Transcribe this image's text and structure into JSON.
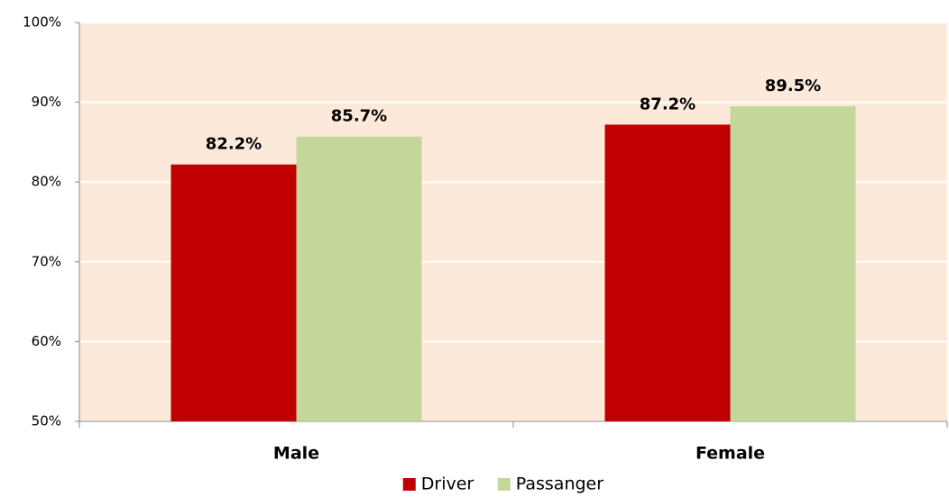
{
  "chart_data": {
    "type": "bar",
    "categories": [
      "Male",
      "Female"
    ],
    "series": [
      {
        "name": "Driver",
        "color": "#c00000",
        "values": [
          82.2,
          87.2
        ],
        "value_labels": [
          "82.2%",
          "87.2%"
        ]
      },
      {
        "name": "Passanger",
        "color": "#c4d79b",
        "values": [
          85.7,
          89.5
        ],
        "value_labels": [
          "85.7%",
          "89.5%"
        ]
      }
    ],
    "ylim": [
      50,
      100
    ],
    "yticks": [
      {
        "value": 50,
        "label": "50%"
      },
      {
        "value": 60,
        "label": "60%"
      },
      {
        "value": 70,
        "label": "70%"
      },
      {
        "value": 80,
        "label": "80%"
      },
      {
        "value": 90,
        "label": "90%"
      },
      {
        "value": 100,
        "label": "100%"
      }
    ],
    "grid": true,
    "legend": "bottom",
    "background": "#fde9d9"
  }
}
